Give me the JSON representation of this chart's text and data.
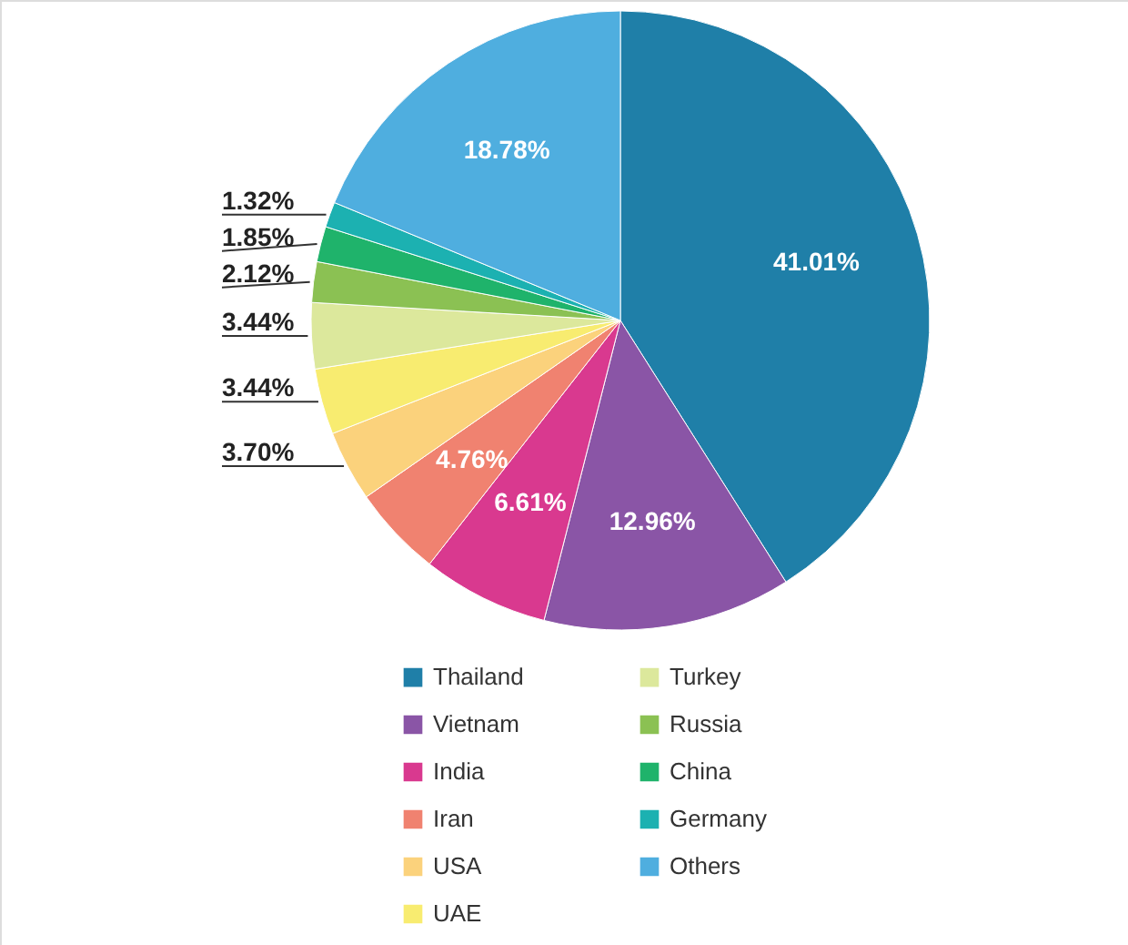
{
  "chart_data": {
    "type": "pie",
    "categories": [
      "Thailand",
      "Vietnam",
      "India",
      "Iran",
      "USA",
      "UAE",
      "Turkey",
      "Russia",
      "China",
      "Germany",
      "Others"
    ],
    "values": [
      41.01,
      12.96,
      6.61,
      4.76,
      3.7,
      3.44,
      3.44,
      2.12,
      1.85,
      1.32,
      18.78
    ],
    "colors": [
      "#1f7fa8",
      "#8a55a6",
      "#d9398f",
      "#f08270",
      "#fbd27c",
      "#f8ec70",
      "#dce89c",
      "#8bc153",
      "#1fb36b",
      "#1cb1b1",
      "#4faedf"
    ],
    "value_labels": [
      "41.01%",
      "12.96%",
      "6.61%",
      "4.76%",
      "3.70%",
      "3.44%",
      "3.44%",
      "2.12%",
      "1.85%",
      "1.32%",
      "18.78%"
    ],
    "legend": "bottom"
  }
}
